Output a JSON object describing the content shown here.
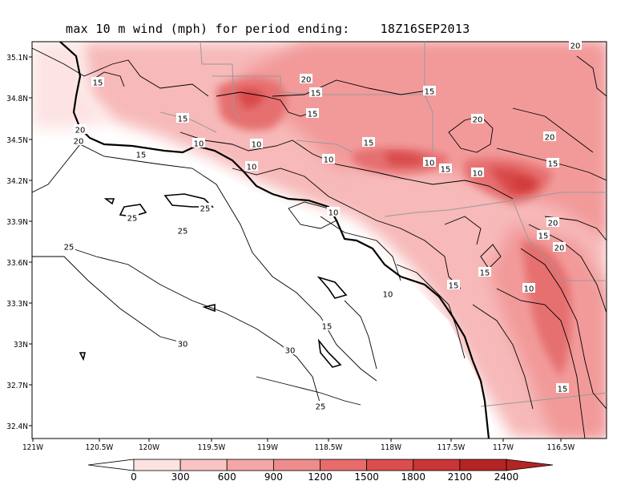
{
  "title": {
    "text": "max 10 m wind (mph) for period ending:",
    "valid_time": "18Z16SEP2013"
  },
  "axes": {
    "lat_labels": [
      "35.1N",
      "34.8N",
      "34.5N",
      "34.2N",
      "33.9N",
      "33.6N",
      "33.3N",
      "33N",
      "32.7N",
      "32.4N"
    ],
    "lon_labels": [
      "121W",
      "120.5W",
      "120W",
      "119.5W",
      "119W",
      "118.5W",
      "118W",
      "117.5W",
      "117W",
      "116.5W"
    ]
  },
  "colorbar": {
    "labels": [
      "0",
      "300",
      "600",
      "900",
      "1200",
      "1500",
      "1800",
      "2100",
      "2400"
    ],
    "colors": [
      "#ffffff",
      "#fde2e2",
      "#f9c4c4",
      "#f4a6a6",
      "#ee8c8c",
      "#e86c6c",
      "#dc4d4d",
      "#c93636",
      "#b52424"
    ]
  },
  "contour_labels": [
    {
      "text": "20"
    },
    {
      "text": "15"
    },
    {
      "text": "20"
    },
    {
      "text": "15"
    },
    {
      "text": "15"
    },
    {
      "text": "15"
    },
    {
      "text": "10"
    },
    {
      "text": "10"
    },
    {
      "text": "10"
    },
    {
      "text": "15"
    },
    {
      "text": "10"
    },
    {
      "text": "15"
    },
    {
      "text": "10"
    },
    {
      "text": "15"
    },
    {
      "text": "20"
    },
    {
      "text": "20"
    },
    {
      "text": "20"
    },
    {
      "text": "15"
    },
    {
      "text": "15"
    },
    {
      "text": "20"
    },
    {
      "text": "15"
    },
    {
      "text": "10"
    },
    {
      "text": "10"
    },
    {
      "text": "10"
    },
    {
      "text": "15"
    },
    {
      "text": "20"
    },
    {
      "text": "20"
    },
    {
      "text": "15"
    },
    {
      "text": "25"
    },
    {
      "text": "25"
    },
    {
      "text": "25"
    },
    {
      "text": "25"
    },
    {
      "text": "30"
    },
    {
      "text": "30"
    },
    {
      "text": "25"
    },
    {
      "text": "15"
    },
    {
      "text": "10"
    },
    {
      "text": "15"
    }
  ]
}
